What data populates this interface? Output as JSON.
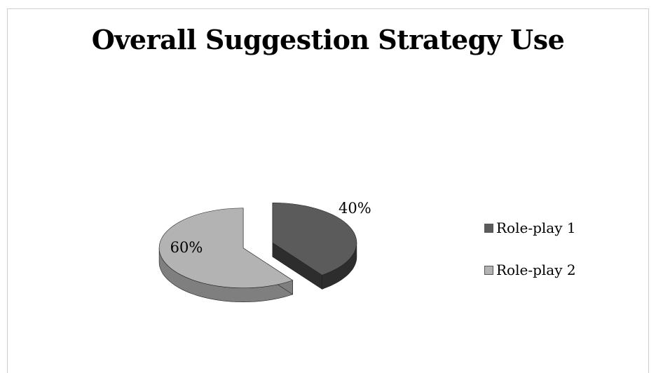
{
  "chart_data": {
    "type": "pie",
    "title": "Overall Suggestion Strategy Use",
    "categories": [
      "Role-play 1",
      "Role-play 2"
    ],
    "values": [
      40,
      60
    ],
    "labels": [
      "40%",
      "60%"
    ],
    "exploded": true,
    "three_d": true,
    "legend_position": "right",
    "colors": [
      "#5b5b5b",
      "#b3b3b3"
    ],
    "side_colors": [
      "#2d2d2d",
      "#7f7f7f"
    ]
  }
}
